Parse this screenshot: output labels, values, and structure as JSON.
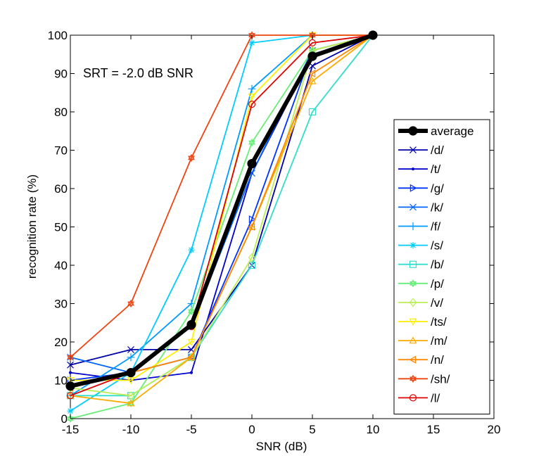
{
  "chart_data": {
    "type": "line",
    "title": "",
    "xlabel": "SNR (dB)",
    "ylabel": "recognition rate (%)",
    "xlim": [
      -15,
      20
    ],
    "ylim": [
      0,
      100
    ],
    "xticks": [
      -15,
      -10,
      -5,
      0,
      5,
      10,
      15,
      20
    ],
    "yticks": [
      0,
      10,
      20,
      30,
      40,
      50,
      60,
      70,
      80,
      90,
      100
    ],
    "grid": false,
    "legend_position": "right",
    "annotation": "SRT = -2.0 dB SNR",
    "x": [
      -15,
      -10,
      -5,
      0,
      5,
      10
    ],
    "series": [
      {
        "name": "average",
        "color": "#000000",
        "marker": "filled-circle",
        "values": [
          8.5,
          12,
          24.5,
          66.5,
          94.5,
          100
        ]
      },
      {
        "name": "/d/",
        "color": "#0000aa",
        "marker": "x",
        "values": [
          14,
          18,
          18,
          40,
          92,
          100
        ]
      },
      {
        "name": "/t/",
        "color": "#0000cc",
        "marker": "dot",
        "values": [
          12,
          10,
          12,
          64,
          95,
          100
        ]
      },
      {
        "name": "/g/",
        "color": "#0033ff",
        "marker": "triangle-right",
        "values": [
          10,
          12,
          16,
          52,
          96,
          100
        ]
      },
      {
        "name": "/k/",
        "color": "#0066ff",
        "marker": "x",
        "values": [
          16,
          12,
          24,
          64,
          96,
          100
        ]
      },
      {
        "name": "/f/",
        "color": "#0099ff",
        "marker": "plus",
        "values": [
          6,
          16,
          30,
          86,
          100,
          100
        ]
      },
      {
        "name": "/s/",
        "color": "#00ccff",
        "marker": "asterisk",
        "values": [
          2,
          12,
          44,
          98,
          100,
          100
        ]
      },
      {
        "name": "/b/",
        "color": "#33ddcc",
        "marker": "square",
        "values": [
          6,
          6,
          16,
          40,
          80,
          100
        ]
      },
      {
        "name": "/p/",
        "color": "#66ee77",
        "marker": "hexagram",
        "values": [
          0,
          4,
          28,
          72,
          96,
          100
        ]
      },
      {
        "name": "/v/",
        "color": "#bbee55",
        "marker": "diamond",
        "values": [
          8,
          6,
          16,
          42,
          96,
          100
        ]
      },
      {
        "name": "/ts/",
        "color": "#ffee00",
        "marker": "triangle-down",
        "values": [
          10,
          10,
          20,
          84,
          100,
          100
        ]
      },
      {
        "name": "/m/",
        "color": "#ffaa00",
        "marker": "triangle-up",
        "values": [
          6,
          4,
          16,
          50,
          88,
          100
        ]
      },
      {
        "name": "/n/",
        "color": "#ff8800",
        "marker": "triangle-left",
        "values": [
          8,
          12,
          16,
          50,
          90,
          100
        ]
      },
      {
        "name": "/sh/",
        "color": "#ee4411",
        "marker": "hexagram",
        "values": [
          16,
          30,
          68,
          100,
          100,
          100
        ]
      },
      {
        "name": "/l/",
        "color": "#dd0000",
        "marker": "circle",
        "values": [
          6,
          12,
          24,
          82,
          98,
          100
        ]
      }
    ]
  }
}
